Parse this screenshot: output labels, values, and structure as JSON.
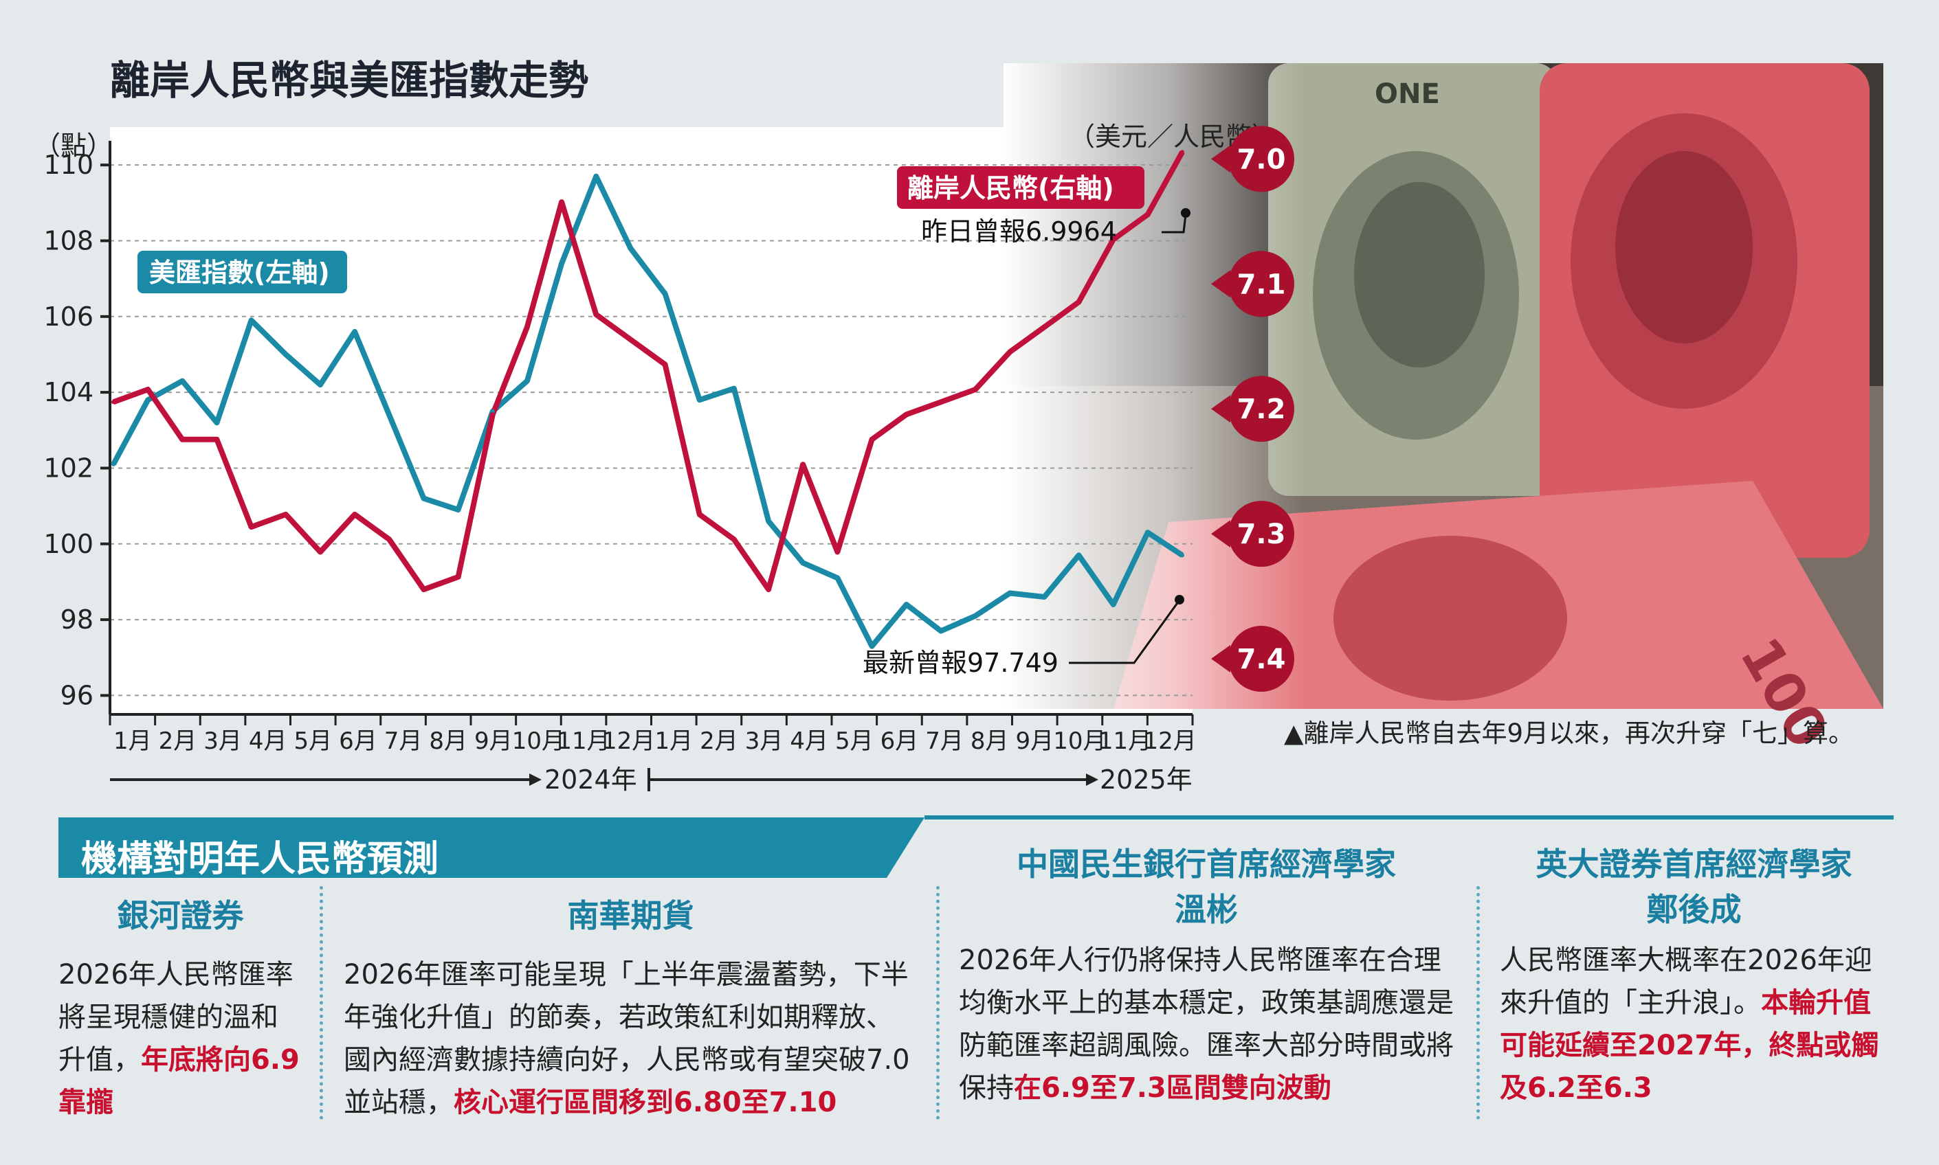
{
  "header": {
    "title": "離岸人民幣與美匯指數走勢"
  },
  "chart": {
    "left_axis_unit": "（點）",
    "right_axis_unit": "（美元／人民幣）",
    "usd_label": "美匯指數(左軸)",
    "cnh_label": "離岸人民幣(右軸)",
    "cnh_annotation": "昨日曾報6.9964",
    "usd_annotation": "最新曾報97.749",
    "year_2024": "2024年",
    "year_2025": "2025年",
    "months": [
      "1月",
      "2月",
      "3月",
      "4月",
      "5月",
      "6月",
      "7月",
      "8月",
      "9月",
      "10月",
      "11月",
      "12月",
      "1月",
      "2月",
      "3月",
      "4月",
      "5月",
      "6月",
      "7月",
      "8月",
      "9月",
      "10月",
      "11月",
      "12月"
    ]
  },
  "chart_data": {
    "type": "line",
    "title": "離岸人民幣與美匯指數走勢",
    "x_ticks": [
      "1月",
      "2月",
      "3月",
      "4月",
      "5月",
      "6月",
      "7月",
      "8月",
      "9月",
      "10月",
      "11月",
      "12月",
      "1月",
      "2月",
      "3月",
      "4月",
      "5月",
      "6月",
      "7月",
      "8月",
      "9月",
      "10月",
      "11月",
      "12月"
    ],
    "left_axis": {
      "label": "（點）",
      "ticks": [
        96,
        98,
        100,
        102,
        104,
        106,
        108,
        110
      ],
      "ylim": [
        95.5,
        111
      ]
    },
    "right_axis": {
      "label": "（美元／人民幣）",
      "ticks": [
        "7.0",
        "7.1",
        "7.2",
        "7.3",
        "7.4"
      ],
      "ylim": [
        7.45,
        6.98
      ],
      "inverted": true
    },
    "series": [
      {
        "name": "美匯指數(左軸)",
        "axis": "left",
        "color": "#1a8aa6",
        "values": [
          102.1,
          103.8,
          104.3,
          103.2,
          105.9,
          105.0,
          104.2,
          105.6,
          103.4,
          101.2,
          100.9,
          103.5,
          104.3,
          107.4,
          109.7,
          107.8,
          106.6,
          103.8,
          104.1,
          100.6,
          99.5,
          99.1,
          97.3,
          98.4,
          97.7,
          98.1,
          98.7,
          98.6,
          99.7,
          98.4,
          100.3,
          99.7
        ]
      },
      {
        "name": "離岸人民幣(右軸)",
        "axis": "right",
        "color": "#c0103c",
        "values": [
          7.2,
          7.19,
          7.23,
          7.23,
          7.3,
          7.29,
          7.32,
          7.29,
          7.31,
          7.35,
          7.34,
          7.21,
          7.14,
          7.04,
          7.13,
          7.15,
          7.17,
          7.29,
          7.31,
          7.35,
          7.25,
          7.32,
          7.23,
          7.21,
          7.2,
          7.19,
          7.16,
          7.14,
          7.12,
          7.07,
          7.05,
          7.0
        ]
      }
    ],
    "annotations": [
      "昨日曾報6.9964",
      "最新曾報97.749"
    ]
  },
  "caption": "▲離岸人民幣自去年9月以來，再次升穿「七」算。",
  "forecast": {
    "title": "機構對明年人民幣預測",
    "columns": [
      {
        "head1": "銀河證券",
        "head2": "",
        "body": "2026年人民幣匯率將呈現穩健的溫和升值，",
        "highlight": "年底將向6.9靠攏"
      },
      {
        "head1": "南華期貨",
        "head2": "",
        "body": "2026年匯率可能呈現「上半年震盪蓄勢，下半年強化升值」的節奏，若政策紅利如期釋放、國內經濟數據持續向好，人民幣或有望突破7.0並站穩，",
        "highlight": "核心運行區間移到6.80至7.10"
      },
      {
        "head1": "中國民生銀行首席經濟學家",
        "head2": "溫彬",
        "body": "2026年人行仍將保持人民幣匯率在合理均衡水平上的基本穩定，政策基調應還是防範匯率超調風險。匯率大部分時間或將保持",
        "highlight": "在6.9至7.3區間雙向波動"
      },
      {
        "head1": "英大證券首席經濟學家",
        "head2": "鄭後成",
        "body": "人民幣匯率大概率在2026年迎來升值的「主升浪」。",
        "highlight": "本輪升值可能延續至2027年，終點或觸及6.2至6.3"
      }
    ]
  }
}
